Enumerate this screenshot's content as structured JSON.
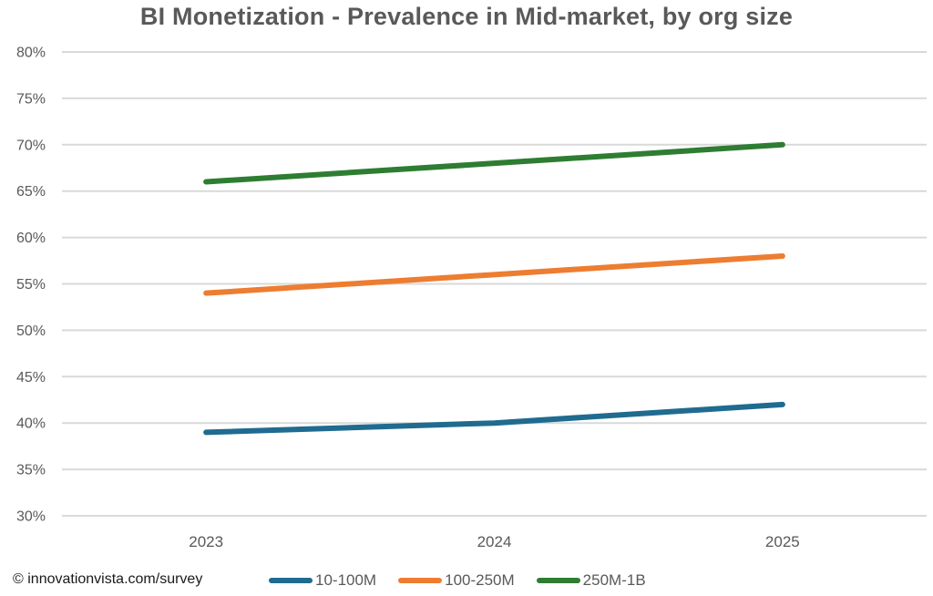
{
  "title": "BI Monetization - Prevalence in Mid-market, by org size",
  "footer": {
    "source": "© innovationvista.com/survey"
  },
  "chart_data": {
    "type": "line",
    "title": "BI Monetization - Prevalence in Mid-market, by org size",
    "categories": [
      "2023",
      "2024",
      "2025"
    ],
    "series": [
      {
        "name": "10-100M",
        "values": [
          39,
          40,
          42
        ],
        "color": "#206B90"
      },
      {
        "name": "100-250M",
        "values": [
          54,
          56,
          58
        ],
        "color": "#ED7D31"
      },
      {
        "name": "250M-1B",
        "values": [
          66,
          68,
          70
        ],
        "color": "#2E7D32"
      }
    ],
    "xlabel": "",
    "ylabel": "",
    "ylim": [
      30,
      80
    ],
    "y_ticks": [
      30,
      35,
      40,
      45,
      50,
      55,
      60,
      65,
      70,
      75,
      80
    ],
    "y_tick_labels": [
      "30%",
      "35%",
      "40%",
      "45%",
      "50%",
      "55%",
      "60%",
      "65%",
      "70%",
      "75%",
      "80%"
    ],
    "grid": true,
    "gridline_color": "#D9D9D9",
    "axis_text_color": "#595959",
    "legend_position": "bottom"
  }
}
